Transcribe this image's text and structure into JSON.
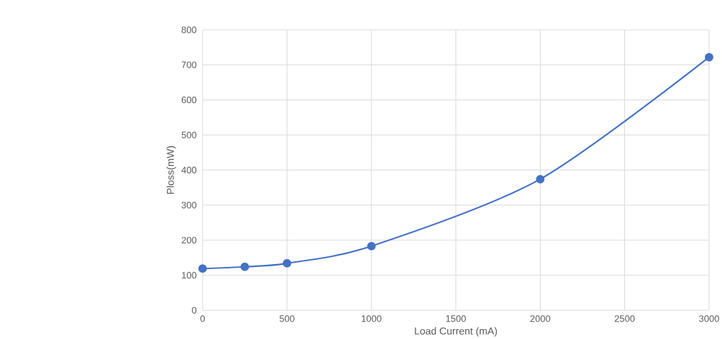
{
  "chart_data": {
    "type": "line",
    "xlabel": "Load Current (mA)",
    "ylabel": "Ploss(mW)",
    "x": [
      0,
      250,
      500,
      1000,
      2000,
      3000
    ],
    "series": [
      {
        "color": "#4472c4",
        "values": [
          119,
          124,
          134,
          183,
          374,
          722
        ]
      }
    ],
    "xlim": [
      0,
      3000
    ],
    "xticks": [
      0,
      500,
      1000,
      1500,
      2000,
      2500,
      3000
    ],
    "ylim": [
      0,
      800
    ],
    "yticks": [
      0,
      100,
      200,
      300,
      400,
      500,
      600,
      700,
      800
    ],
    "grid": true,
    "marker": "circle",
    "line_style": "solid"
  }
}
